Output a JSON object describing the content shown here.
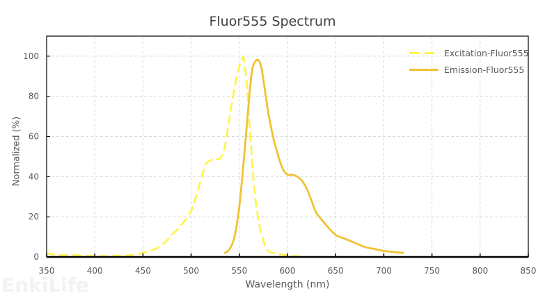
{
  "chart_data": {
    "type": "line",
    "title": "Fluor555  Spectrum",
    "xlabel": "Wavelength (nm)",
    "ylabel": "Normalized (%)",
    "xlim": [
      350,
      850
    ],
    "ylim": [
      0,
      110
    ],
    "xticks": [
      350,
      400,
      450,
      500,
      550,
      600,
      650,
      700,
      750,
      800,
      850
    ],
    "yticks": [
      0,
      20,
      40,
      60,
      80,
      100
    ],
    "grid": true,
    "legend_position": "upper right",
    "series": [
      {
        "name": "Excitation-Fluor555",
        "style": "dashed",
        "color": "#fff44f",
        "x": [
          350,
          360,
          380,
          400,
          420,
          440,
          450,
          460,
          470,
          480,
          490,
          500,
          505,
          510,
          515,
          520,
          525,
          530,
          535,
          540,
          545,
          550,
          553,
          555,
          558,
          560,
          563,
          566,
          570,
          575,
          580,
          590,
          600,
          610,
          620
        ],
        "y": [
          2,
          1,
          0.8,
          0.5,
          0.5,
          1,
          2,
          3.5,
          6,
          11,
          16,
          23,
          30,
          38,
          46,
          48,
          49,
          49,
          55,
          70,
          84,
          95,
          99,
          98,
          85,
          70,
          50,
          32,
          18,
          8,
          3,
          1.5,
          0.8,
          0.3,
          0
        ]
      },
      {
        "name": "Emission-Fluor555",
        "style": "solid",
        "color": "#f1c232",
        "x": [
          535,
          540,
          545,
          550,
          555,
          560,
          563,
          566,
          570,
          573,
          576,
          580,
          585,
          590,
          595,
          600,
          605,
          610,
          615,
          620,
          625,
          630,
          640,
          650,
          660,
          670,
          680,
          690,
          700,
          710,
          720
        ],
        "y": [
          2,
          4,
          10,
          25,
          50,
          78,
          92,
          97,
          98,
          94,
          85,
          72,
          60,
          51,
          44,
          41,
          41,
          40,
          38,
          34,
          28,
          22,
          16,
          11,
          9,
          7,
          5,
          4,
          3,
          2.5,
          2
        ]
      }
    ]
  },
  "watermark": "EnkiLife"
}
